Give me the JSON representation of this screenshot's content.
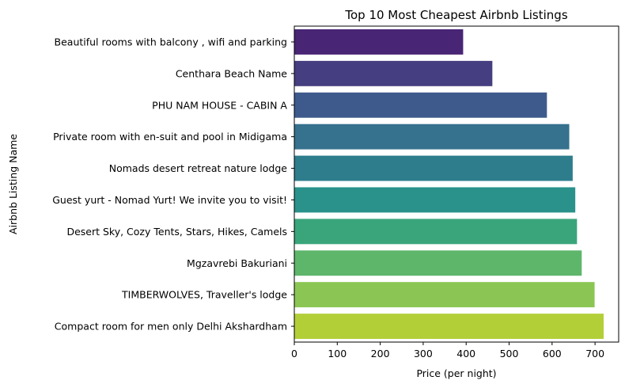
{
  "chart_data": {
    "type": "bar",
    "orientation": "horizontal",
    "title": "Top 10 Most Cheapest Airbnb Listings",
    "xlabel": "Price (per night)",
    "ylabel": "Airbnb Listing Name",
    "xlim": [
      0,
      755
    ],
    "xticks": [
      0,
      100,
      200,
      300,
      400,
      500,
      600,
      700
    ],
    "categories": [
      "Beautiful  rooms with balcony , wifi and parking",
      "Centhara Beach Name",
      "PHU NAM HOUSE - CABIN A",
      "Private room with en-suit and pool in Midigama",
      "Nomads desert retreat nature lodge",
      "Guest yurt - Nomad Yurt! We invite you to visit!",
      "Desert Sky, Cozy Tents, Stars, Hikes, Camels",
      "Mgzavrebi Bakuriani",
      "TIMBERWOLVES, Traveller's lodge",
      "Compact room for men only Delhi  Akshardham"
    ],
    "values": [
      393,
      461,
      588,
      640,
      648,
      654,
      658,
      669,
      699,
      720
    ],
    "colors": [
      "#482575",
      "#453f81",
      "#3e5a8c",
      "#36718d",
      "#2e7d8d",
      "#2a928b",
      "#3aa57b",
      "#5eb66a",
      "#8bc654",
      "#b3cf38"
    ],
    "grid": false,
    "legend": "none"
  }
}
